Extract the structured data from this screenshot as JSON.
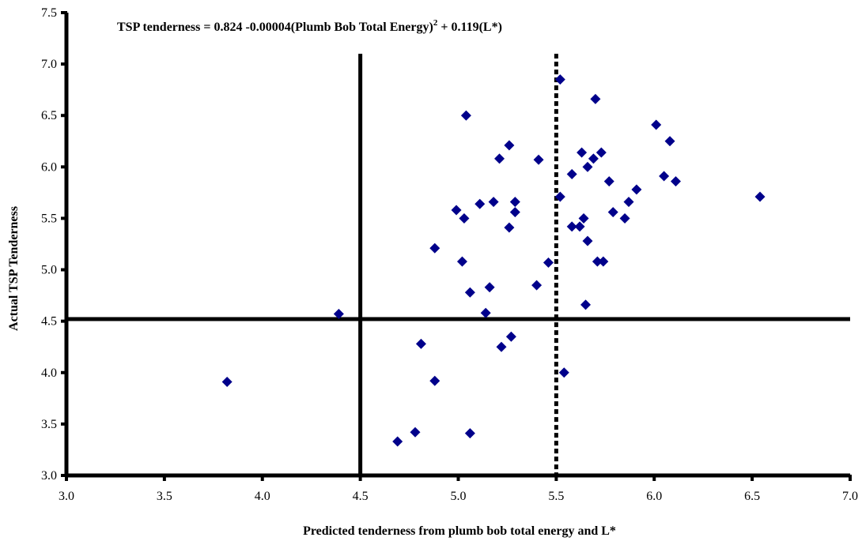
{
  "chart_data": {
    "type": "scatter",
    "title_parts": {
      "pre": "TSP tenderness = 0.824 -0.00004(Plumb Bob Total Energy)",
      "sup": "2",
      "post": " + 0.119(L*)"
    },
    "xlabel": "Predicted tenderness from plumb bob total energy and L*",
    "ylabel": "Actual TSP Tenderness",
    "xlim": [
      3.0,
      7.0
    ],
    "ylim": [
      3.0,
      7.5
    ],
    "xticks": [
      "3.0",
      "3.5",
      "4.0",
      "4.5",
      "5.0",
      "5.5",
      "6.0",
      "6.5",
      "7.0"
    ],
    "yticks": [
      "3.0",
      "3.5",
      "4.0",
      "4.5",
      "5.0",
      "5.5",
      "6.0",
      "6.5",
      "7.0",
      "7.5"
    ],
    "marker_color": "#00008B",
    "reference_lines": [
      {
        "orientation": "vertical",
        "x": 4.5,
        "y_end": 7.1,
        "style": "solid"
      },
      {
        "orientation": "vertical",
        "x": 5.5,
        "y_end": 7.1,
        "style": "dotted"
      },
      {
        "orientation": "horizontal",
        "y": 4.52,
        "style": "solid"
      }
    ],
    "points": [
      [
        3.82,
        3.91
      ],
      [
        4.39,
        4.57
      ],
      [
        4.69,
        3.33
      ],
      [
        4.78,
        3.42
      ],
      [
        4.81,
        4.28
      ],
      [
        4.88,
        5.21
      ],
      [
        4.88,
        3.92
      ],
      [
        4.99,
        5.58
      ],
      [
        5.02,
        5.08
      ],
      [
        5.03,
        5.5
      ],
      [
        5.04,
        6.5
      ],
      [
        5.06,
        4.78
      ],
      [
        5.06,
        3.41
      ],
      [
        5.11,
        5.64
      ],
      [
        5.14,
        4.58
      ],
      [
        5.16,
        4.83
      ],
      [
        5.18,
        5.66
      ],
      [
        5.21,
        6.08
      ],
      [
        5.22,
        4.25
      ],
      [
        5.26,
        6.21
      ],
      [
        5.26,
        5.41
      ],
      [
        5.27,
        4.35
      ],
      [
        5.29,
        5.66
      ],
      [
        5.29,
        5.56
      ],
      [
        5.4,
        4.85
      ],
      [
        5.41,
        6.07
      ],
      [
        5.46,
        5.07
      ],
      [
        5.52,
        6.85
      ],
      [
        5.52,
        5.71
      ],
      [
        5.54,
        4.0
      ],
      [
        5.58,
        5.93
      ],
      [
        5.58,
        5.42
      ],
      [
        5.62,
        5.42
      ],
      [
        5.63,
        6.14
      ],
      [
        5.64,
        5.5
      ],
      [
        5.65,
        4.66
      ],
      [
        5.66,
        6.0
      ],
      [
        5.66,
        5.28
      ],
      [
        5.69,
        6.08
      ],
      [
        5.7,
        6.66
      ],
      [
        5.71,
        5.08
      ],
      [
        5.73,
        6.14
      ],
      [
        5.74,
        5.08
      ],
      [
        5.77,
        5.86
      ],
      [
        5.79,
        5.56
      ],
      [
        5.85,
        5.5
      ],
      [
        5.87,
        5.66
      ],
      [
        5.91,
        5.78
      ],
      [
        6.01,
        6.41
      ],
      [
        6.05,
        5.91
      ],
      [
        6.08,
        6.25
      ],
      [
        6.11,
        5.86
      ],
      [
        6.54,
        5.71
      ]
    ]
  }
}
